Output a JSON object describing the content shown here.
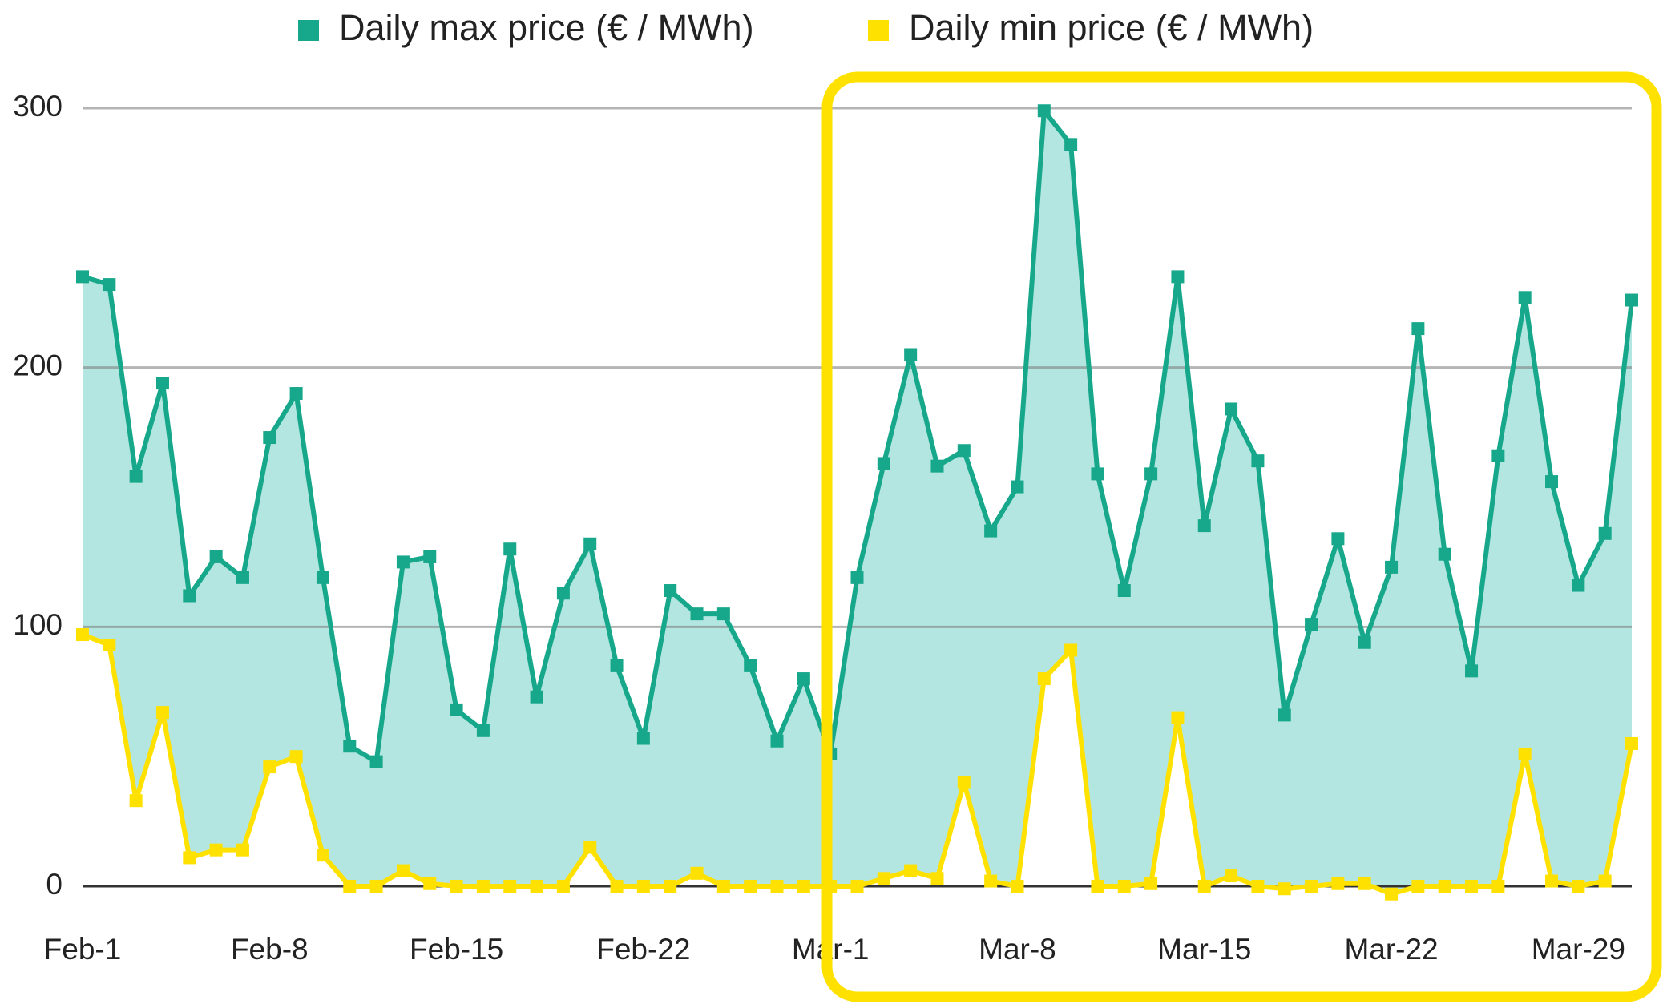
{
  "chart_data": {
    "type": "line",
    "categories": [
      "Feb-1",
      null,
      null,
      null,
      null,
      null,
      null,
      "Feb-8",
      null,
      null,
      null,
      null,
      null,
      null,
      "Feb-15",
      null,
      null,
      null,
      null,
      null,
      null,
      "Feb-22",
      null,
      null,
      null,
      null,
      null,
      null,
      "Mar-1",
      null,
      null,
      null,
      null,
      null,
      null,
      "Mar-8",
      null,
      null,
      null,
      null,
      null,
      null,
      "Mar-15",
      null,
      null,
      null,
      null,
      null,
      null,
      "Mar-22",
      null,
      null,
      null,
      null,
      null,
      null,
      "Mar-29",
      null,
      null
    ],
    "series": [
      {
        "name": "Daily max price (€ / MWh)",
        "color": "#17a88b",
        "values": [
          235,
          232,
          158,
          194,
          112,
          127,
          119,
          173,
          190,
          119,
          54,
          48,
          125,
          127,
          68,
          60,
          130,
          73,
          113,
          132,
          85,
          57,
          114,
          105,
          105,
          85,
          56,
          80,
          51,
          119,
          163,
          205,
          162,
          168,
          137,
          154,
          299,
          286,
          159,
          114,
          159,
          235,
          139,
          184,
          164,
          66,
          101,
          134,
          94,
          123,
          215,
          128,
          83,
          166,
          227,
          156,
          116,
          136,
          226
        ]
      },
      {
        "name": "Daily min price (€ / MWh)",
        "color": "#ffe100",
        "values": [
          97,
          93,
          33,
          67,
          11,
          14,
          14,
          46,
          50,
          12,
          0,
          0,
          6,
          1,
          0,
          0,
          0,
          0,
          0,
          15,
          0,
          0,
          0,
          5,
          0,
          0,
          0,
          0,
          0,
          0,
          3,
          6,
          3,
          40,
          2,
          0,
          80,
          91,
          0,
          0,
          1,
          65,
          0,
          4,
          0,
          -1,
          0,
          1,
          1,
          -3,
          0,
          0,
          0,
          0,
          51,
          2,
          0,
          2,
          55
        ]
      }
    ],
    "fill_between": "#b3e6e0",
    "ylim": [
      0,
      300
    ],
    "yticks": [
      0,
      100,
      200,
      300
    ],
    "grid": true,
    "legend": "top"
  }
}
